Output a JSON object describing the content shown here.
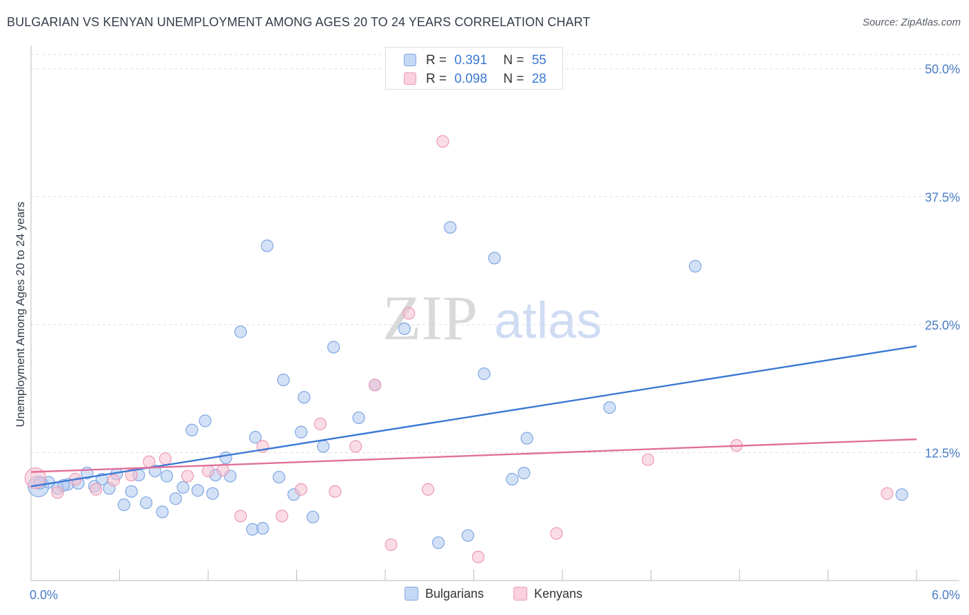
{
  "header": {
    "title": "BULGARIAN VS KENYAN UNEMPLOYMENT AMONG AGES 20 TO 24 YEARS CORRELATION CHART",
    "source": "Source: ZipAtlas.com"
  },
  "watermark": {
    "zip": "ZIP",
    "atlas": "atlas"
  },
  "legend": {
    "rows": [
      {
        "r_label": "R =",
        "r_value": "0.391",
        "n_label": "N =",
        "n_value": "55"
      },
      {
        "r_label": "R =",
        "r_value": "0.098",
        "n_label": "N =",
        "n_value": "28"
      }
    ]
  },
  "bottom_legend": {
    "bulgarians": "Bulgarians",
    "kenyans": "Kenyans"
  },
  "colors": {
    "bulgarians_fill": "#aec8f0",
    "bulgarians_stroke": "#7ea6e0",
    "bulgarians_line": "#3a78d4",
    "kenyans_fill": "#f6bfd0",
    "kenyans_stroke": "#ec9ab4",
    "kenyans_line": "#e0709a",
    "axis_text": "#4a7cc7",
    "grid": "#dddddd"
  },
  "chart_data": {
    "type": "scatter",
    "title": "BULGARIAN VS KENYAN UNEMPLOYMENT AMONG AGES 20 TO 24 YEARS CORRELATION CHART",
    "xlabel": "",
    "ylabel": "Unemployment Among Ages 20 to 24 years",
    "xlim": [
      0,
      6
    ],
    "ylim": [
      0,
      52
    ],
    "x_tick_labels": [
      {
        "value": 0,
        "label": "0.0%"
      },
      {
        "value": 6,
        "label": "6.0%"
      }
    ],
    "y_tick_labels": [
      {
        "value": 12.5,
        "label": "12.5%"
      },
      {
        "value": 25,
        "label": "25.0%"
      },
      {
        "value": 37.5,
        "label": "37.5%"
      },
      {
        "value": 50,
        "label": "50.0%"
      }
    ],
    "x_minor_ticks": [
      0.6,
      1.2,
      1.8,
      2.4,
      3.0,
      3.6,
      4.2,
      4.8,
      5.4,
      6.0
    ],
    "legend_position": "top-center",
    "series": [
      {
        "name": "Bulgarians",
        "trend": {
          "x": [
            0,
            6
          ],
          "y": [
            9.2,
            22.9
          ]
        },
        "points": [
          {
            "x": 0.05,
            "y": 9.2,
            "big": true
          },
          {
            "x": 0.12,
            "y": 9.6
          },
          {
            "x": 0.18,
            "y": 9.0
          },
          {
            "x": 0.25,
            "y": 9.4
          },
          {
            "x": 0.32,
            "y": 9.5
          },
          {
            "x": 0.38,
            "y": 10.5
          },
          {
            "x": 0.43,
            "y": 9.2
          },
          {
            "x": 0.48,
            "y": 9.9
          },
          {
            "x": 0.53,
            "y": 9.0
          },
          {
            "x": 0.58,
            "y": 10.4
          },
          {
            "x": 0.63,
            "y": 7.4
          },
          {
            "x": 0.68,
            "y": 8.7
          },
          {
            "x": 0.73,
            "y": 10.3
          },
          {
            "x": 0.78,
            "y": 7.6
          },
          {
            "x": 0.84,
            "y": 10.7
          },
          {
            "x": 0.89,
            "y": 6.7
          },
          {
            "x": 0.92,
            "y": 10.2
          },
          {
            "x": 0.98,
            "y": 8.0
          },
          {
            "x": 1.03,
            "y": 9.1
          },
          {
            "x": 1.09,
            "y": 14.7
          },
          {
            "x": 1.13,
            "y": 8.8
          },
          {
            "x": 1.18,
            "y": 15.6
          },
          {
            "x": 1.23,
            "y": 8.5
          },
          {
            "x": 1.25,
            "y": 10.3
          },
          {
            "x": 1.32,
            "y": 12.0
          },
          {
            "x": 1.35,
            "y": 10.2
          },
          {
            "x": 1.42,
            "y": 24.3
          },
          {
            "x": 1.5,
            "y": 5.0
          },
          {
            "x": 1.52,
            "y": 14.0
          },
          {
            "x": 1.57,
            "y": 5.1
          },
          {
            "x": 1.6,
            "y": 32.7
          },
          {
            "x": 1.68,
            "y": 10.1
          },
          {
            "x": 1.71,
            "y": 19.6
          },
          {
            "x": 1.78,
            "y": 8.4
          },
          {
            "x": 1.83,
            "y": 14.5
          },
          {
            "x": 1.85,
            "y": 17.9
          },
          {
            "x": 1.91,
            "y": 6.2
          },
          {
            "x": 1.98,
            "y": 13.1
          },
          {
            "x": 2.05,
            "y": 22.8
          },
          {
            "x": 2.22,
            "y": 15.9
          },
          {
            "x": 2.33,
            "y": 19.1
          },
          {
            "x": 2.53,
            "y": 24.6
          },
          {
            "x": 2.76,
            "y": 3.7
          },
          {
            "x": 2.84,
            "y": 34.5
          },
          {
            "x": 2.96,
            "y": 4.4
          },
          {
            "x": 3.07,
            "y": 20.2
          },
          {
            "x": 3.14,
            "y": 31.5
          },
          {
            "x": 3.26,
            "y": 9.9
          },
          {
            "x": 3.34,
            "y": 10.5
          },
          {
            "x": 3.36,
            "y": 13.9
          },
          {
            "x": 3.92,
            "y": 16.9
          },
          {
            "x": 4.5,
            "y": 30.7
          },
          {
            "x": 5.9,
            "y": 8.4
          },
          {
            "x": 0.22,
            "y": 9.3
          },
          {
            "x": 0.06,
            "y": 9.5
          }
        ]
      },
      {
        "name": "Kenyans",
        "trend": {
          "x": [
            0,
            6
          ],
          "y": [
            10.6,
            13.8
          ]
        },
        "points": [
          {
            "x": 0.03,
            "y": 10.0,
            "big": true
          },
          {
            "x": 0.18,
            "y": 8.6
          },
          {
            "x": 0.3,
            "y": 9.9
          },
          {
            "x": 0.44,
            "y": 8.9
          },
          {
            "x": 0.56,
            "y": 9.8
          },
          {
            "x": 0.68,
            "y": 10.3
          },
          {
            "x": 0.8,
            "y": 11.6
          },
          {
            "x": 0.91,
            "y": 11.9
          },
          {
            "x": 1.06,
            "y": 10.2
          },
          {
            "x": 1.2,
            "y": 10.7
          },
          {
            "x": 1.3,
            "y": 10.8
          },
          {
            "x": 1.42,
            "y": 6.3
          },
          {
            "x": 1.57,
            "y": 13.1
          },
          {
            "x": 1.7,
            "y": 6.3
          },
          {
            "x": 1.83,
            "y": 8.9
          },
          {
            "x": 1.96,
            "y": 15.3
          },
          {
            "x": 2.06,
            "y": 8.7
          },
          {
            "x": 2.2,
            "y": 13.1
          },
          {
            "x": 2.33,
            "y": 19.1
          },
          {
            "x": 2.44,
            "y": 3.5
          },
          {
            "x": 2.56,
            "y": 26.1
          },
          {
            "x": 2.69,
            "y": 8.9
          },
          {
            "x": 2.79,
            "y": 42.9
          },
          {
            "x": 3.03,
            "y": 2.3
          },
          {
            "x": 3.56,
            "y": 4.6
          },
          {
            "x": 4.18,
            "y": 11.8
          },
          {
            "x": 4.78,
            "y": 13.2
          },
          {
            "x": 5.8,
            "y": 8.5
          }
        ]
      }
    ]
  }
}
